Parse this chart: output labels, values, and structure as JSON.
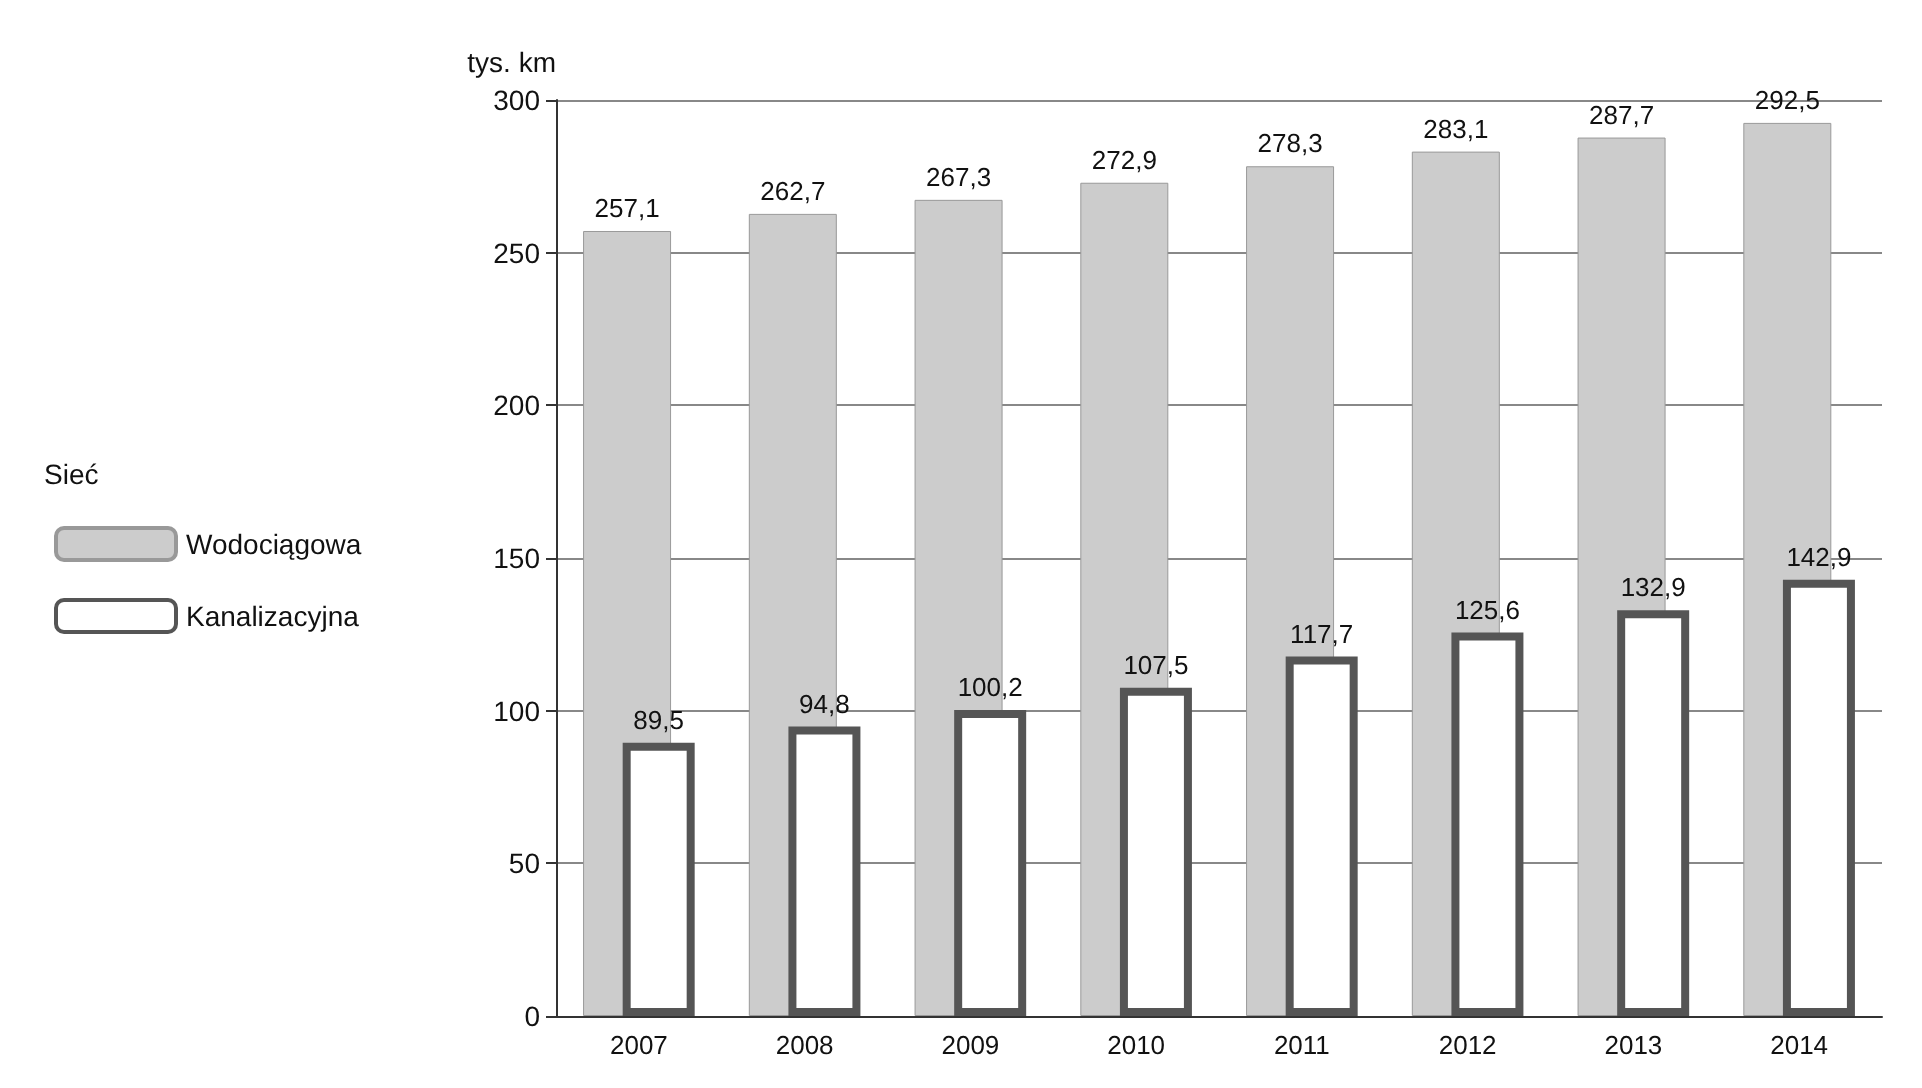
{
  "chart_data": {
    "type": "bar",
    "ylabel": "tys. km",
    "legend_title": "Sieć",
    "categories": [
      "2007",
      "2008",
      "2009",
      "2010",
      "2011",
      "2012",
      "2013",
      "2014"
    ],
    "series": [
      {
        "name": "Wodociągowa",
        "color": "#cccccc",
        "values": [
          257.1,
          262.7,
          267.3,
          272.9,
          278.3,
          283.1,
          287.7,
          292.5
        ],
        "value_labels": [
          "257,1",
          "262,7",
          "267,3",
          "272,9",
          "278,3",
          "283,1",
          "287,7",
          "292,5"
        ]
      },
      {
        "name": "Kanalizacyjna",
        "color": "#555555",
        "values": [
          89.5,
          94.8,
          100.2,
          107.5,
          117.7,
          125.6,
          132.9,
          142.9
        ],
        "value_labels": [
          "89,5",
          "94,8",
          "100,2",
          "107,5",
          "117,7",
          "125,6",
          "132,9",
          "142,9"
        ]
      }
    ],
    "ylim": [
      0,
      300
    ],
    "yticks": [
      0,
      50,
      100,
      150,
      200,
      250,
      300
    ],
    "grid": "y",
    "legend": "left"
  }
}
